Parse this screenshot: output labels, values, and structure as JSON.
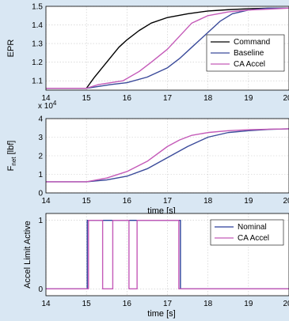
{
  "colors": {
    "command": "#000000",
    "baseline": "#3a4a9a",
    "ca_accel": "#c45ab8",
    "nominal": "#2a3f9a",
    "axes_bg": "#ffffff",
    "figure_bg": "#d9e7f3"
  },
  "chart_data": [
    {
      "type": "line",
      "ylabel": "EPR",
      "xlim": [
        14,
        20
      ],
      "ylim": [
        1.05,
        1.5
      ],
      "xticks": [
        "14",
        "15",
        "16",
        "17",
        "18",
        "19",
        "20"
      ],
      "yticks": [
        "1.1",
        "1.2",
        "1.3",
        "1.4",
        "1.5"
      ],
      "legend": "bottom-right",
      "series": [
        {
          "name": "Command",
          "x": [
            14,
            15,
            15.2,
            15.5,
            15.8,
            16.0,
            16.3,
            16.6,
            17.0,
            17.5,
            18.0,
            18.5,
            19.0,
            19.5,
            20
          ],
          "y": [
            1.06,
            1.06,
            1.12,
            1.2,
            1.28,
            1.32,
            1.37,
            1.41,
            1.44,
            1.46,
            1.475,
            1.482,
            1.487,
            1.49,
            1.49
          ]
        },
        {
          "name": "Baseline",
          "x": [
            14,
            15,
            15.3,
            15.6,
            16.0,
            16.5,
            17.0,
            17.3,
            17.6,
            18.0,
            18.3,
            18.6,
            19.0,
            19.5,
            20
          ],
          "y": [
            1.06,
            1.06,
            1.07,
            1.08,
            1.09,
            1.12,
            1.17,
            1.22,
            1.28,
            1.36,
            1.42,
            1.46,
            1.48,
            1.49,
            1.49
          ]
        },
        {
          "name": "CA Accel",
          "x": [
            14,
            15,
            15.3,
            15.6,
            15.9,
            16.3,
            16.6,
            17.0,
            17.3,
            17.6,
            18.0,
            18.5,
            19.0,
            19.5,
            20
          ],
          "y": [
            1.06,
            1.06,
            1.08,
            1.09,
            1.1,
            1.15,
            1.2,
            1.27,
            1.34,
            1.41,
            1.45,
            1.47,
            1.48,
            1.485,
            1.49
          ]
        }
      ]
    },
    {
      "type": "line",
      "ylabel": "F",
      "ylabel_sub": "net",
      "ylabel_suffix": " [lbf]",
      "xlabel": "time [s]",
      "exponent_base": "x 10",
      "exponent_power": "4",
      "xlim": [
        14,
        20
      ],
      "ylim": [
        0,
        4
      ],
      "xticks": [
        "14",
        "15",
        "16",
        "17",
        "18",
        "19",
        "20"
      ],
      "yticks": [
        "0",
        "1",
        "2",
        "3",
        "4"
      ],
      "series": [
        {
          "name": "Baseline",
          "x": [
            14,
            15,
            15.5,
            16.0,
            16.5,
            17.0,
            17.5,
            18.0,
            18.5,
            19.0,
            19.5,
            20
          ],
          "y": [
            0.6,
            0.6,
            0.7,
            0.9,
            1.3,
            1.9,
            2.5,
            3.0,
            3.25,
            3.35,
            3.42,
            3.45
          ]
        },
        {
          "name": "CA Accel",
          "x": [
            14,
            15,
            15.5,
            16.0,
            16.5,
            17.0,
            17.3,
            17.6,
            18.0,
            18.5,
            19.0,
            19.5,
            20
          ],
          "y": [
            0.6,
            0.6,
            0.8,
            1.15,
            1.7,
            2.5,
            2.85,
            3.1,
            3.25,
            3.35,
            3.4,
            3.43,
            3.45
          ]
        }
      ]
    },
    {
      "type": "line",
      "ylabel": "Accel Limit Active",
      "xlabel": "time [s]",
      "xlim": [
        14,
        20
      ],
      "ylim": [
        -0.1,
        1.1
      ],
      "xticks": [
        "14",
        "15",
        "16",
        "17",
        "18",
        "19",
        "20"
      ],
      "yticks": [
        "0",
        "1"
      ],
      "legend": "top-right",
      "series": [
        {
          "name": "Nominal",
          "x": [
            14,
            15.02,
            15.02,
            17.32,
            17.32,
            20
          ],
          "y": [
            0,
            0,
            1,
            1,
            0,
            0
          ]
        },
        {
          "name": "CA Accel",
          "x": [
            14,
            15.05,
            15.05,
            15.4,
            15.4,
            15.65,
            15.65,
            16.05,
            16.05,
            16.25,
            16.25,
            17.28,
            17.28,
            20
          ],
          "y": [
            0,
            0,
            1,
            1,
            0,
            0,
            1,
            1,
            0,
            0,
            1,
            1,
            0,
            0
          ]
        }
      ]
    }
  ]
}
